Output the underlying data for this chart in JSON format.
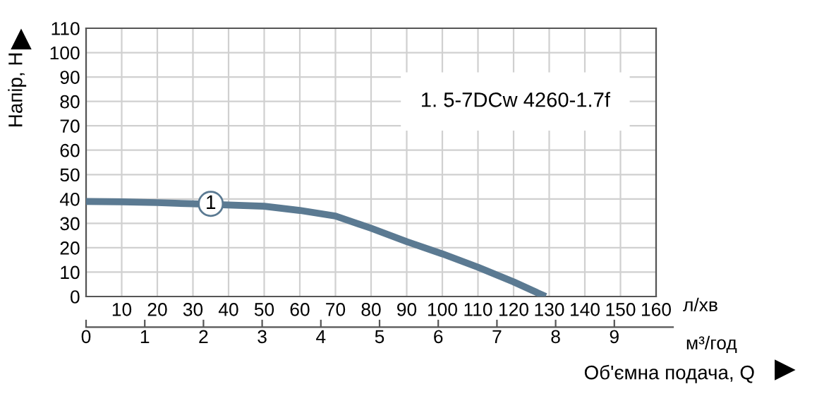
{
  "chart_data": {
    "type": "line",
    "xlabel": "Об'ємна подача, Q",
    "ylabel": "Напір, H",
    "x2label": "м³/год",
    "series": [
      {
        "name": "1. 5-7DCw 4260-1.7f",
        "color": "#5b7a92",
        "x": [
          0,
          10,
          20,
          30,
          40,
          50,
          60,
          70,
          80,
          90,
          100,
          110,
          120,
          129
        ],
        "values": [
          39,
          38.8,
          38.5,
          38,
          37.5,
          37,
          35.3,
          33,
          28,
          22.5,
          17.5,
          12,
          6,
          0
        ]
      }
    ],
    "annotations": [
      {
        "text": "1",
        "x": 35,
        "y": 38
      },
      "л/хв"
    ],
    "xlim": [
      0,
      160
    ],
    "ylim": [
      0,
      110
    ],
    "xticks": [
      {
        "value": 0,
        "label": null
      },
      10,
      20,
      30,
      40,
      50,
      60,
      70,
      80,
      90,
      100,
      110,
      120,
      130,
      140,
      150,
      160
    ],
    "yticks": [
      0,
      10,
      20,
      30,
      40,
      50,
      60,
      70,
      80,
      90,
      100,
      110
    ],
    "x2lim": [
      0,
      10
    ],
    "x2ticks": [
      0,
      1,
      2,
      3,
      4,
      5,
      6,
      7,
      8,
      9
    ],
    "grid": true,
    "legend": "top right",
    "marker": "none",
    "line_style": "solid"
  }
}
